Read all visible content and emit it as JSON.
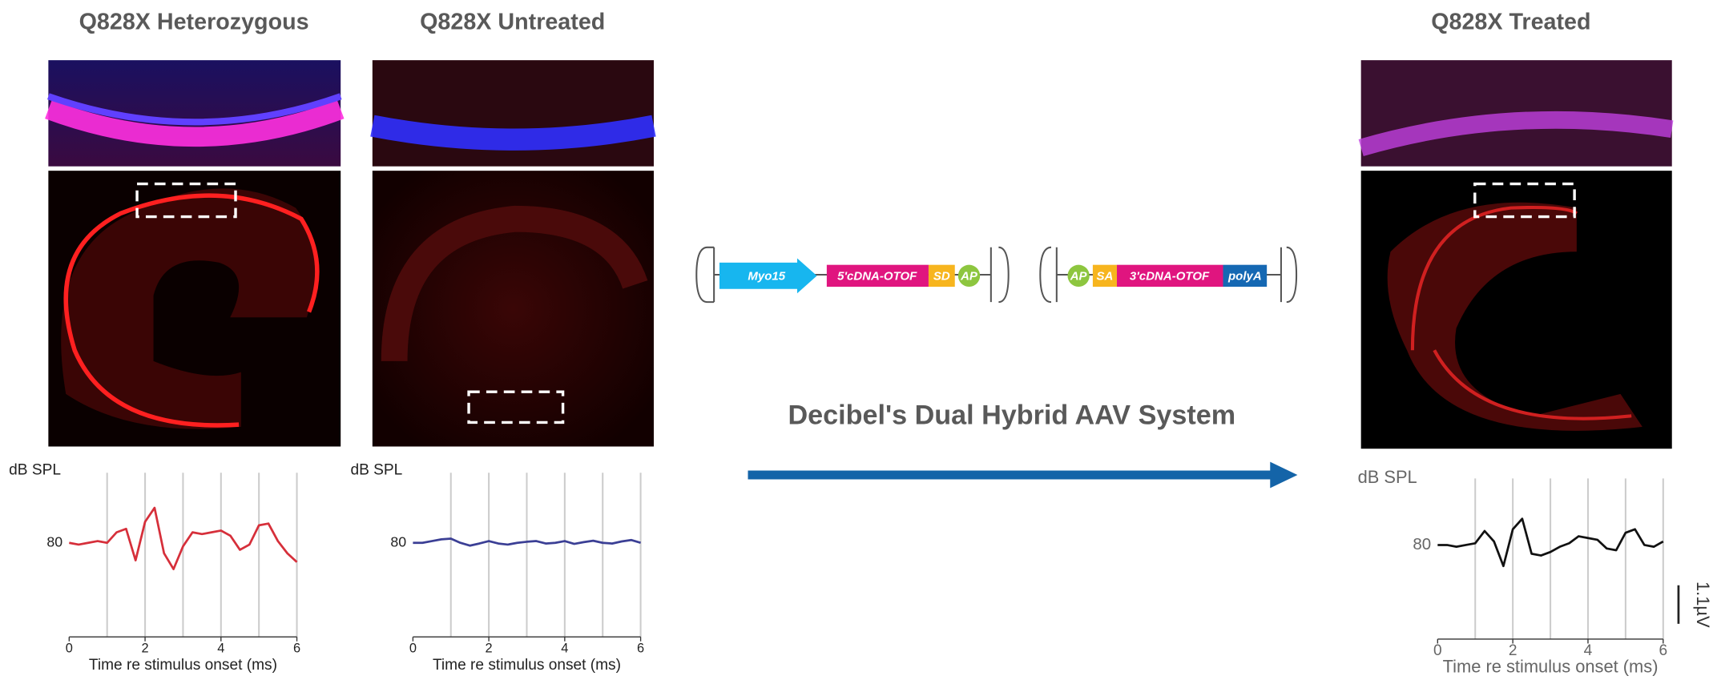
{
  "panels": {
    "titles": [
      "Q828X Heterozygous",
      "Q828X Untreated",
      "Q828X Treated"
    ]
  },
  "construct": {
    "title": "Decibel's Dual Hybrid AAV System",
    "left": [
      "Myo15",
      "5'cDNA-OTOF",
      "SD",
      "AP"
    ],
    "right": [
      "AP",
      "SA",
      "3'cDNA-OTOF",
      "polyA"
    ]
  },
  "chart_data": [
    {
      "type": "line",
      "ylabel": "dB SPL",
      "xlabel": "Time re stimulus onset (ms)",
      "x": [
        0,
        0.25,
        0.5,
        0.75,
        1,
        1.25,
        1.5,
        1.75,
        2,
        2.25,
        2.5,
        2.75,
        3,
        3.25,
        3.5,
        3.75,
        4,
        4.25,
        4.5,
        4.75,
        5,
        5.25,
        5.5,
        5.75,
        6
      ],
      "xlim": [
        0,
        6
      ],
      "xticks": [
        0,
        2,
        4,
        6
      ],
      "xgrid": [
        1,
        2,
        3,
        4,
        5,
        6
      ],
      "ylim": [
        -2.5,
        2
      ],
      "series": [
        {
          "name": "80",
          "color": "#d62f3a",
          "values": [
            0,
            -0.05,
            0,
            0.05,
            0,
            0.3,
            0.4,
            -0.5,
            0.6,
            1.0,
            -0.3,
            -0.75,
            -0.1,
            0.3,
            0.25,
            0.3,
            0.35,
            0.2,
            -0.2,
            -0.05,
            0.5,
            0.55,
            0.05,
            -0.3,
            -0.55
          ]
        }
      ]
    },
    {
      "type": "line",
      "ylabel": "dB SPL",
      "xlabel": "Time re stimulus onset (ms)",
      "x": [
        0,
        0.25,
        0.5,
        0.75,
        1,
        1.25,
        1.5,
        1.75,
        2,
        2.25,
        2.5,
        2.75,
        3,
        3.25,
        3.5,
        3.75,
        4,
        4.25,
        4.5,
        4.75,
        5,
        5.25,
        5.5,
        5.75,
        6
      ],
      "xlim": [
        0,
        6
      ],
      "xticks": [
        0,
        2,
        4,
        6
      ],
      "xgrid": [
        1,
        2,
        3,
        4,
        5,
        6
      ],
      "ylim": [
        -2.5,
        2
      ],
      "series": [
        {
          "name": "80",
          "color": "#3b3f95",
          "values": [
            0,
            0,
            0.05,
            0.1,
            0.12,
            0,
            -0.08,
            -0.02,
            0.05,
            -0.02,
            -0.05,
            0,
            0.03,
            0.05,
            -0.02,
            0,
            0.05,
            -0.03,
            0.02,
            0.06,
            0,
            -0.02,
            0.04,
            0.08,
            0
          ]
        }
      ]
    },
    {
      "type": "line",
      "ylabel": "dB SPL",
      "xlabel": "Time re stimulus onset (ms)",
      "x": [
        0,
        0.25,
        0.5,
        0.75,
        1,
        1.25,
        1.5,
        1.75,
        2,
        2.25,
        2.5,
        2.75,
        3,
        3.25,
        3.5,
        3.75,
        4,
        4.25,
        4.5,
        4.75,
        5,
        5.25,
        5.5,
        5.75,
        6
      ],
      "xlim": [
        0,
        6
      ],
      "xticks": [
        0,
        2,
        4,
        6
      ],
      "xgrid": [
        1,
        2,
        3,
        4,
        5,
        6
      ],
      "ylim": [
        -2.5,
        1.9
      ],
      "series": [
        {
          "name": "80",
          "color": "#111111",
          "values": [
            0,
            0,
            -0.05,
            0,
            0.05,
            0.4,
            0.1,
            -0.6,
            0.45,
            0.75,
            -0.25,
            -0.3,
            -0.2,
            -0.05,
            0.05,
            0.25,
            0.2,
            0.15,
            -0.1,
            -0.15,
            0.35,
            0.45,
            0,
            -0.05,
            0.1
          ]
        }
      ],
      "scale_bar": {
        "value": 1.1,
        "label": "1.1µV"
      }
    }
  ]
}
